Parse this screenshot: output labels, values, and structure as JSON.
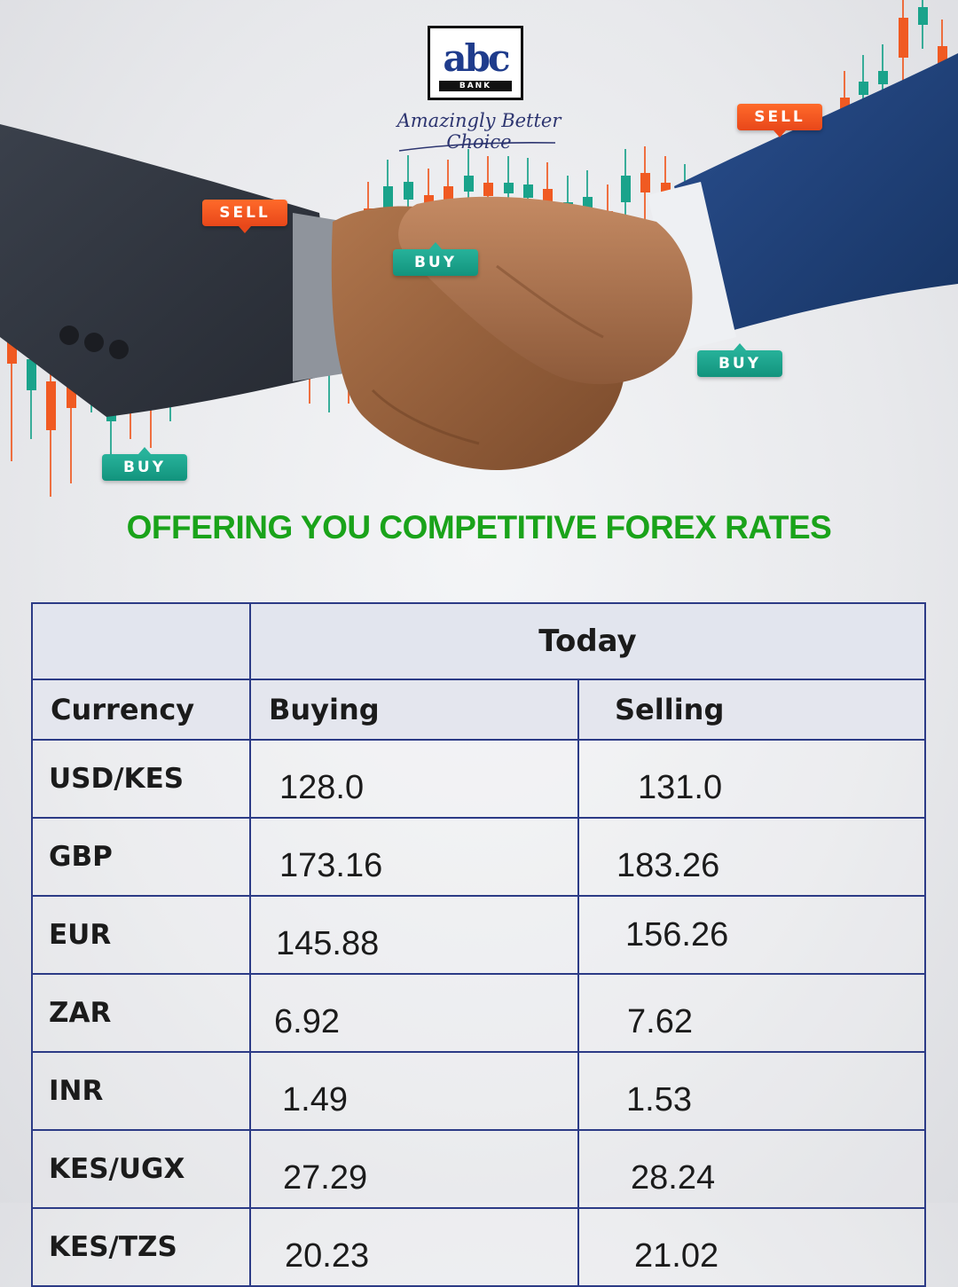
{
  "brand": {
    "logo_text": "abc",
    "logo_subtext": "BANK",
    "tagline": "Amazingly Better Choice",
    "colors": {
      "navy": "#1f3c8c",
      "green": "#1aa31a",
      "sell": "#f05a22",
      "buy": "#1aa38b"
    }
  },
  "hero": {
    "image": "handshake over forex candlestick chart",
    "tags": [
      {
        "type": "sell",
        "label": "SELL"
      },
      {
        "type": "buy",
        "label": "BUY"
      },
      {
        "type": "sell",
        "label": "SELL"
      },
      {
        "type": "buy",
        "label": "BUY"
      },
      {
        "type": "buy",
        "label": "BUY"
      }
    ]
  },
  "headline": "OFFERING YOU COMPETITIVE FOREX RATES",
  "table": {
    "group_header": "Today",
    "columns": [
      "Currency",
      "Buying",
      "Selling"
    ],
    "rows": [
      {
        "currency": "USD/KES",
        "buying": "128.0",
        "selling": "131.0"
      },
      {
        "currency": "GBP",
        "buying": "173.16",
        "selling": "183.26"
      },
      {
        "currency": "EUR",
        "buying": "145.88",
        "selling": "156.26"
      },
      {
        "currency": "ZAR",
        "buying": "6.92",
        "selling": "7.62"
      },
      {
        "currency": "INR",
        "buying": "1.49",
        "selling": "1.53"
      },
      {
        "currency": "KES/UGX",
        "buying": "27.29",
        "selling": "28.24"
      },
      {
        "currency": "KES/TZS",
        "buying": "20.23",
        "selling": "21.02"
      }
    ]
  }
}
